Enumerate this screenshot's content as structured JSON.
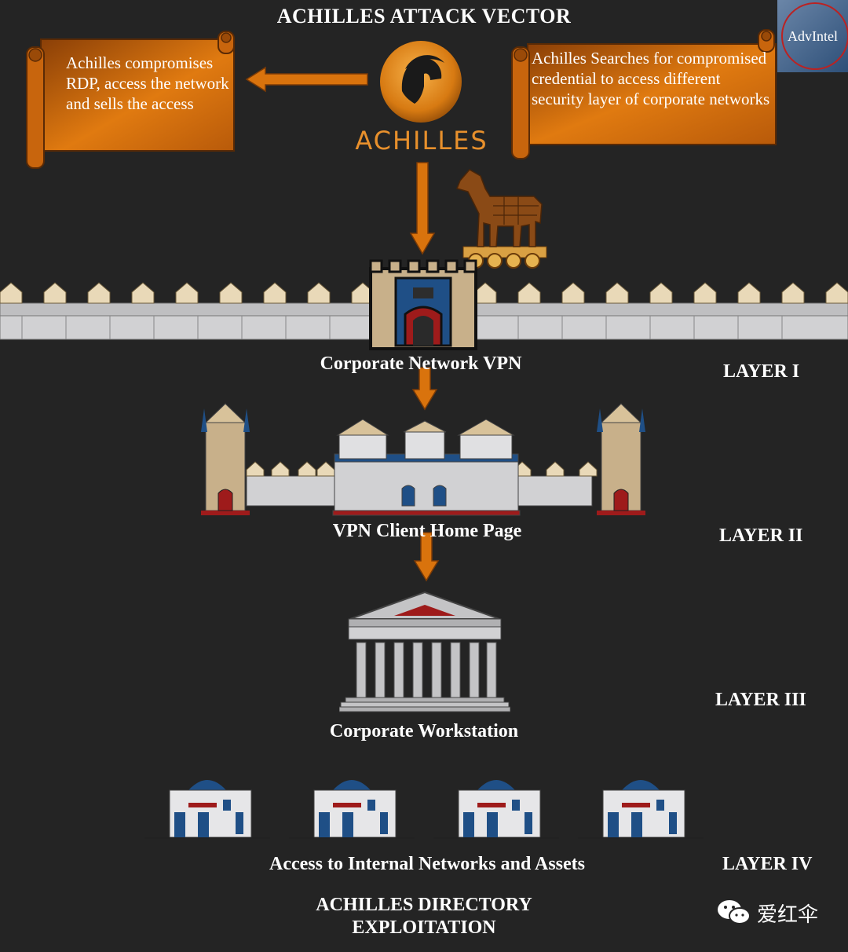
{
  "title": "ACHILLES ATTACK VECTOR",
  "logo": {
    "text": "AdvIntel"
  },
  "achilles": {
    "wordmark": "ACHILLES"
  },
  "left_scroll": {
    "text": "Achilles compromises RDP, access the network and sells the access"
  },
  "right_scroll": {
    "text": "Achilles Searches for compromised credential to access different security layer of corporate networks"
  },
  "layers": [
    {
      "label": "Corporate Network VPN",
      "layer": "LAYER I"
    },
    {
      "label": "VPN Client Home Page",
      "layer": "LAYER II"
    },
    {
      "label": "Corporate Workstation",
      "layer": "LAYER III"
    },
    {
      "label": "Access to Internal Networks and Assets",
      "layer": "LAYER IV"
    }
  ],
  "footer": {
    "line1": "ACHILLES DIRECTORY",
    "line2": "EXPLOITATION"
  },
  "watermark": {
    "text": "爱红伞"
  },
  "colors": {
    "background": "#242424",
    "orange": "#d9730d",
    "scroll_dark": "#8a3f07",
    "wall": "#c9c9cb",
    "stone": "#c8b08a",
    "blue": "#1f4f86",
    "red": "#9e1b1b"
  },
  "icons": [
    "helmet-icon",
    "trojan-horse-icon",
    "castle-gate-icon",
    "palace-icon",
    "temple-icon",
    "house-icon",
    "wechat-icon"
  ]
}
